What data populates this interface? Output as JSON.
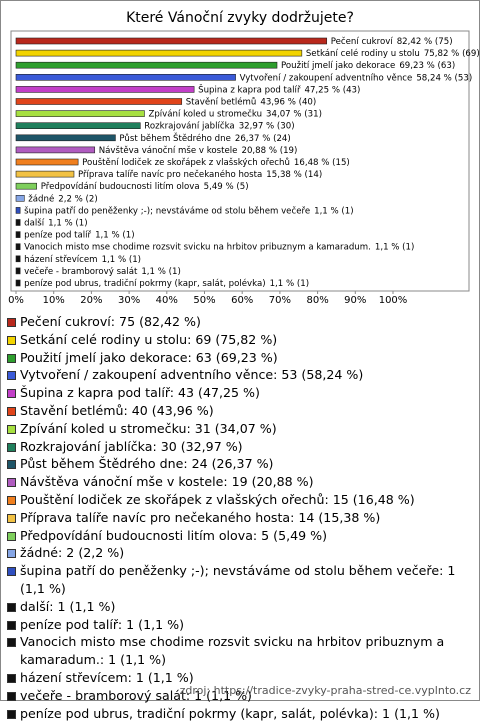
{
  "chart_data": {
    "type": "bar",
    "orientation": "horizontal",
    "title": "Které Vánoční zvyky dodržujete?",
    "source": "zdroj: https://tradice-zvyky-praha-stred-ce.vyplnto.cz",
    "categories": [
      "Pečení cukroví",
      "Setkání celé rodiny u stolu",
      "Použití jmelí jako dekorace",
      "Vytvoření / zakoupení adventního věnce",
      "Šupina z kapra pod talíř",
      "Stavění betlémů",
      "Zpívání koled u stromečku",
      "Rozkrajování jablíčka",
      "Půst během Štědrého dne",
      "Návštěva vánoční mše v kostele",
      "Pouštění lodiček ze skořápek z vlašských ořechů",
      "Příprava talíře navíc pro nečekaného hosta",
      "Předpovídání budoucnosti litím olova",
      "žádné",
      "šupina patří do peněženky ;-); nevstáváme od stolu během večeře",
      "další",
      "peníze pod talíř",
      "Vanocich misto mse chodime rozsvit svicku na hrbitov pribuznym a kamaradum.",
      "házení střevícem",
      "večeře - bramborový salát",
      "peníze pod ubrus, tradiční pokrmy (kapr, salát, polévka)"
    ],
    "values": [
      82.42,
      75.82,
      69.23,
      58.24,
      47.25,
      43.96,
      34.07,
      32.97,
      26.37,
      20.88,
      16.48,
      15.38,
      5.49,
      2.2,
      1.1,
      1.1,
      1.1,
      1.1,
      1.1,
      1.1,
      1.1
    ],
    "value_labels": [
      "82,42 % (75)",
      "75,82 % (69)",
      "69,23 % (63)",
      "58,24 % (53)",
      "47,25 % (43)",
      "43,96 % (40)",
      "34,07 % (31)",
      "32,97 % (30)",
      "26,37 % (24)",
      "20,88 % (19)",
      "16,48 % (15)",
      "15,38 % (14)",
      "5,49 % (5)",
      "2,2 % (2)",
      "1,1 % (1)",
      "1,1 % (1)",
      "1,1 % (1)",
      "1,1 % (1)",
      "1,1 % (1)",
      "1,1 % (1)",
      "1,1 % (1)"
    ],
    "legend_labels": [
      "Pečení cukroví: 75 (82,42 %)",
      "Setkání celé rodiny u stolu: 69 (75,82 %)",
      "Použití jmelí jako dekorace: 63 (69,23 %)",
      "Vytvoření / zakoupení adventního věnce: 53 (58,24 %)",
      "Šupina z kapra pod talíř: 43 (47,25 %)",
      "Stavění betlémů: 40 (43,96 %)",
      "Zpívání koled u stromečku: 31 (34,07 %)",
      "Rozkrajování jablíčka: 30 (32,97 %)",
      "Půst během Štědrého dne: 24 (26,37 %)",
      "Návštěva vánoční mše v kostele: 19 (20,88 %)",
      "Pouštění lodiček ze skořápek z vlašských ořechů: 15 (16,48 %)",
      "Příprava talíře navíc pro nečekaného hosta: 14 (15,38 %)",
      "Předpovídání budoucnosti litím olova: 5 (5,49 %)",
      "žádné: 2 (2,2 %)",
      "šupina patří do peněženky ;-); nevstáváme od stolu během večeře: 1 (1,1 %)",
      "další: 1 (1,1 %)",
      "peníze pod talíř: 1 (1,1 %)",
      "Vanocich misto mse chodime rozsvit svicku na hrbitov pribuznym a kamaradum.: 1 (1,1 %)",
      "házení střevícem: 1 (1,1 %)",
      "večeře - bramborový salát: 1 (1,1 %)",
      "peníze pod ubrus, tradiční pokrmy (kapr, salát, polévka): 1 (1,1 %)"
    ],
    "colors": [
      "#b8281c",
      "#f2d400",
      "#2e9e2e",
      "#3a5ad8",
      "#c23fc8",
      "#e0441a",
      "#a6e040",
      "#1f7f5c",
      "#1e5568",
      "#b05cc0",
      "#f07f1e",
      "#f2c244",
      "#7ecf5c",
      "#86a6e6",
      "#2f4fc0",
      "#111111",
      "#111111",
      "#111111",
      "#111111",
      "#111111",
      "#111111"
    ],
    "xlim": [
      0,
      120
    ],
    "xticks": [
      {
        "value": 0,
        "label": "0%"
      },
      {
        "value": 10,
        "label": "10%"
      },
      {
        "value": 20,
        "label": "20%"
      },
      {
        "value": 30,
        "label": "30%"
      },
      {
        "value": 40,
        "label": "40%"
      },
      {
        "value": 50,
        "label": "50%"
      },
      {
        "value": 60,
        "label": "60%"
      },
      {
        "value": 70,
        "label": "70%"
      },
      {
        "value": 80,
        "label": "80%"
      },
      {
        "value": 90,
        "label": "90%"
      },
      {
        "value": 100,
        "label": "100%"
      }
    ],
    "grid": false
  }
}
